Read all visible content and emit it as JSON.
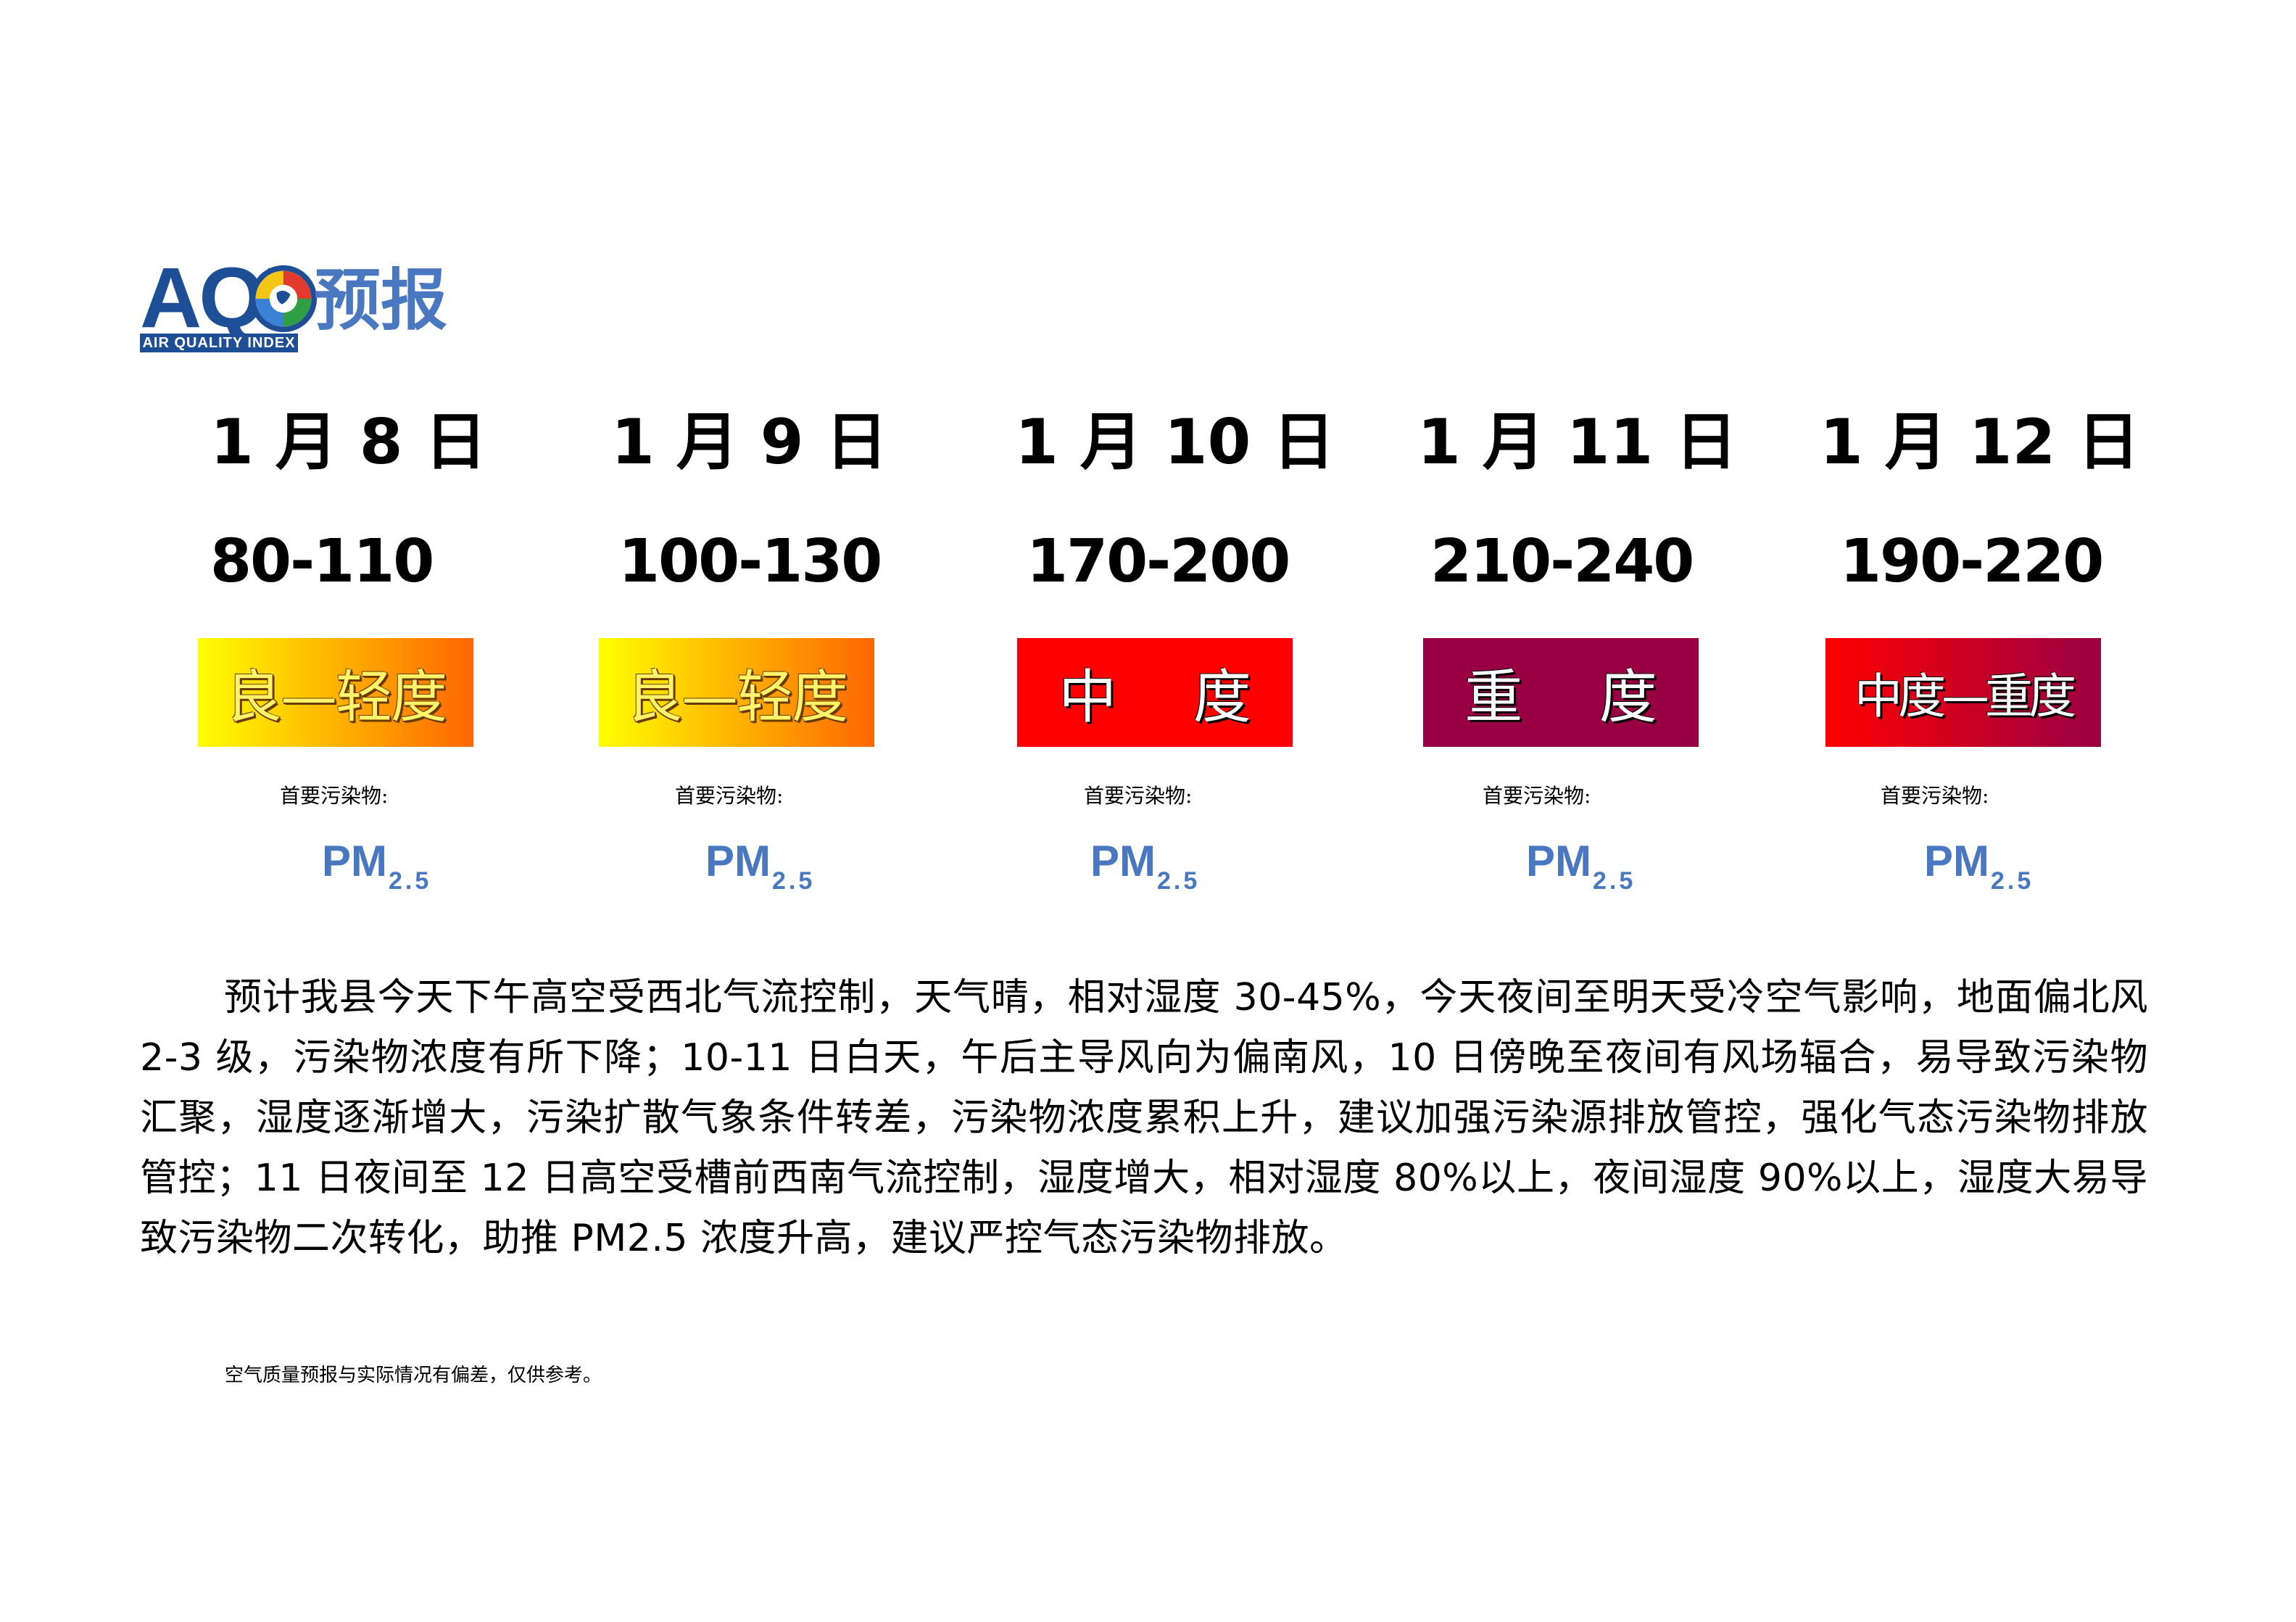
{
  "logo": {
    "acronym": "AQI",
    "subtitle": "AIR QUALITY INDEX",
    "word": "预报"
  },
  "forecast": [
    {
      "date": "1 月 8 日",
      "range": "80-110",
      "level": "良—轻度",
      "pollutant_label": "首要污染物:",
      "pollutant_main": "PM",
      "pollutant_sub": "2.5",
      "colors": [
        "#ffff00",
        "#ff6600"
      ]
    },
    {
      "date": "1 月 9 日",
      "range": "100-130",
      "level": "良—轻度",
      "pollutant_label": "首要污染物:",
      "pollutant_main": "PM",
      "pollutant_sub": "2.5",
      "colors": [
        "#ffff00",
        "#ff6600"
      ]
    },
    {
      "date": "1 月 10 日",
      "range": "170-200",
      "level": "中 度",
      "pollutant_label": "首要污染物:",
      "pollutant_main": "PM",
      "pollutant_sub": "2.5",
      "colors": [
        "#ff0000",
        "#ff0000"
      ]
    },
    {
      "date": "1 月 11 日",
      "range": "210-240",
      "level": "重 度",
      "pollutant_label": "首要污染物:",
      "pollutant_main": "PM",
      "pollutant_sub": "2.5",
      "colors": [
        "#990044",
        "#990044"
      ]
    },
    {
      "date": "1 月 12 日",
      "range": "190-220",
      "level": "中度—重度",
      "pollutant_label": "首要污染物:",
      "pollutant_main": "PM",
      "pollutant_sub": "2.5",
      "colors": [
        "#ff0000",
        "#990044"
      ]
    }
  ],
  "description": "预计我县今天下午高空受西北气流控制，天气晴，相对湿度 30-45%，今天夜间至明天受冷空气影响，地面偏北风 2-3 级，污染物浓度有所下降；10-11 日白天，午后主导风向为偏南风，10 日傍晚至夜间有风场辐合，易导致污染物汇聚，湿度逐渐增大，污染扩散气象条件转差，污染物浓度累积上升，建议加强污染源排放管控，强化气态污染物排放管控；11 日夜间至 12 日高空受槽前西南气流控制，湿度增大，相对湿度 80%以上，夜间湿度 90%以上，湿度大易导致污染物二次转化，助推 PM2.5 浓度升高，建议严控气态污染物排放。",
  "disclaimer": "空气质量预报与实际情况有偏差，仅供参考。"
}
